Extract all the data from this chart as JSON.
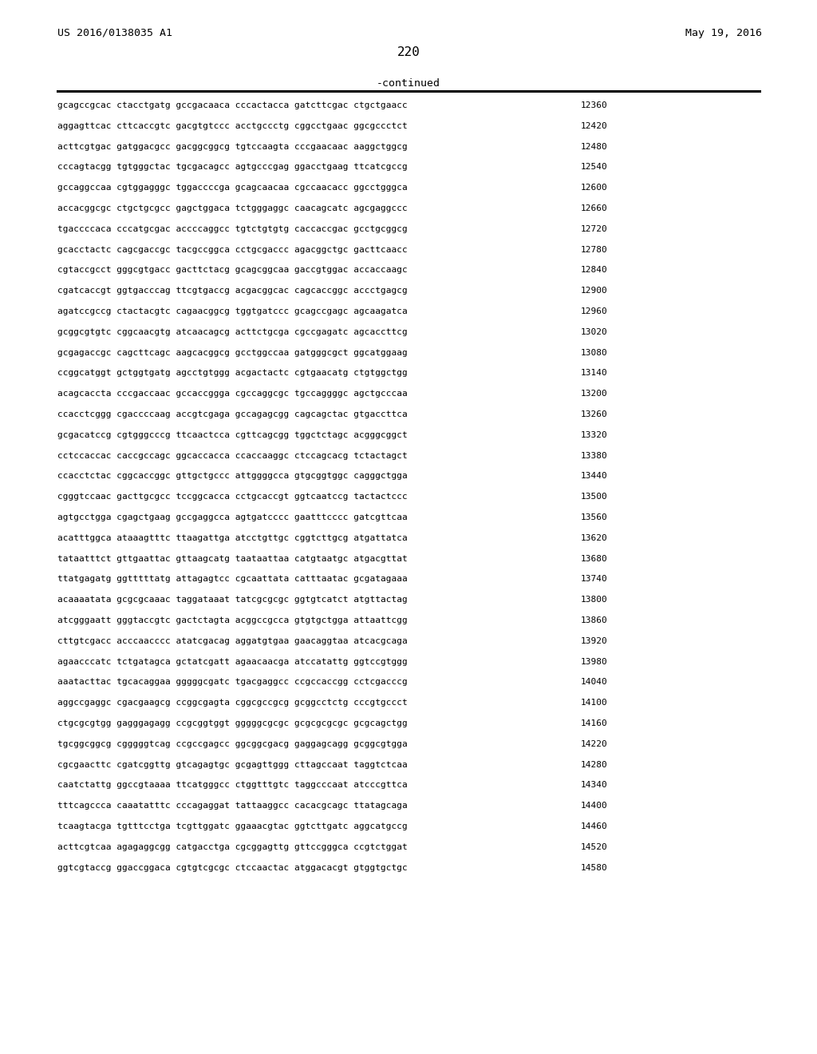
{
  "patent_left": "US 2016/0138035 A1",
  "patent_right": "May 19, 2016",
  "page_number": "220",
  "continued_text": "-continued",
  "background_color": "#ffffff",
  "text_color": "#000000",
  "font_size_header": 9.5,
  "font_size_sequence": 8.0,
  "font_size_page": 11.5,
  "sequences": [
    [
      "gcagccgcac ctacctgatg gccgacaaca cccactacca gatcttcgac ctgctgaacc",
      "12360"
    ],
    [
      "aggagttcac cttcaccgtc gacgtgtccc acctgccctg cggcctgaac ggcgccctct",
      "12420"
    ],
    [
      "acttcgtgac gatggacgcc gacggcggcg tgtccaagta cccgaacaac aaggctggcg",
      "12480"
    ],
    [
      "cccagtacgg tgtgggctac tgcgacagcc agtgcccgag ggacctgaag ttcatcgccg",
      "12540"
    ],
    [
      "gccaggccaa cgtggagggc tggaccccga gcagcaacaa cgccaacacc ggcctgggca",
      "12600"
    ],
    [
      "accacggcgc ctgctgcgcc gagctggaca tctgggaggc caacagcatc agcgaggccc",
      "12660"
    ],
    [
      "tgaccccaca cccatgcgac accccaggcc tgtctgtgtg caccaccgac gcctgcggcg",
      "12720"
    ],
    [
      "gcacctactc cagcgaccgc tacgccggca cctgcgaccc agacggctgc gacttcaacc",
      "12780"
    ],
    [
      "cgtaccgcct gggcgtgacc gacttctacg gcagcggcaa gaccgtggac accaccaagc",
      "12840"
    ],
    [
      "cgatcaccgt ggtgacccag ttcgtgaccg acgacggcac cagcaccggc accctgagcg",
      "12900"
    ],
    [
      "agatccgccg ctactacgtc cagaacggcg tggtgatccc gcagccgagc agcaagatca",
      "12960"
    ],
    [
      "gcggcgtgtc cggcaacgtg atcaacagcg acttctgcga cgccgagatc agcaccttcg",
      "13020"
    ],
    [
      "gcgagaccgc cagcttcagc aagcacggcg gcctggccaa gatgggcgct ggcatggaag",
      "13080"
    ],
    [
      "ccggcatggt gctggtgatg agcctgtggg acgactactc cgtgaacatg ctgtggctgg",
      "13140"
    ],
    [
      "acagcaccta cccgaccaac gccaccggga cgccaggcgc tgccaggggc agctgcccaa",
      "13200"
    ],
    [
      "ccacctcggg cgaccccaag accgtcgaga gccagagcgg cagcagctac gtgaccttca",
      "13260"
    ],
    [
      "gcgacatccg cgtgggcccg ttcaactcca cgttcagcgg tggctctagc acgggcggct",
      "13320"
    ],
    [
      "cctccaccac caccgccagc ggcaccacca ccaccaaggc ctccagcacg tctactagct",
      "13380"
    ],
    [
      "ccacctctac cggcaccggc gttgctgccc attggggcca gtgcggtggc cagggctgga",
      "13440"
    ],
    [
      "cgggtccaac gacttgcgcc tccggcacca cctgcaccgt ggtcaatccg tactactccc",
      "13500"
    ],
    [
      "agtgcctgga cgagctgaag gccgaggcca agtgatcccc gaatttcccc gatcgttcaa",
      "13560"
    ],
    [
      "acatttggca ataaagtttc ttaagattga atcctgttgc cggtcttgcg atgattatca",
      "13620"
    ],
    [
      "tataatttct gttgaattac gttaagcatg taataattaa catgtaatgc atgacgttat",
      "13680"
    ],
    [
      "ttatgagatg ggtttttatg attagagtcc cgcaattata catttaatac gcgatagaaa",
      "13740"
    ],
    [
      "acaaaatata gcgcgcaaac taggataaat tatcgcgcgc ggtgtcatct atgttactag",
      "13800"
    ],
    [
      "atcgggaatt gggtaccgtc gactctagta acggccgcca gtgtgctgga attaattcgg",
      "13860"
    ],
    [
      "cttgtcgacc acccaacccc atatcgacag aggatgtgaa gaacaggtaa atcacgcaga",
      "13920"
    ],
    [
      "agaacccatc tctgatagca gctatcgatt agaacaacga atccatattg ggtccgtggg",
      "13980"
    ],
    [
      "aaatacttac tgcacaggaa gggggcgatc tgacgaggcc ccgccaccgg cctcgacccg",
      "14040"
    ],
    [
      "aggccgaggc cgacgaagcg ccggcgagta cggcgccgcg gcggcctctg cccgtgccct",
      "14100"
    ],
    [
      "ctgcgcgtgg gagggagagg ccgcggtggt gggggcgcgc gcgcgcgcgc gcgcagctgg",
      "14160"
    ],
    [
      "tgcggcggcg cgggggtcag ccgccgagcc ggcggcgacg gaggagcagg gcggcgtgga",
      "14220"
    ],
    [
      "cgcgaacttc cgatcggttg gtcagagtgc gcgagttggg cttagccaat taggtctcaa",
      "14280"
    ],
    [
      "caatctattg ggccgtaaaa ttcatgggcc ctggtttgtc taggcccaat atcccgttca",
      "14340"
    ],
    [
      "tttcagccca caaatatttc cccagaggat tattaaggcc cacacgcagc ttatagcaga",
      "14400"
    ],
    [
      "tcaagtacga tgtttcctga tcgttggatc ggaaacgtac ggtcttgatc aggcatgccg",
      "14460"
    ],
    [
      "acttcgtcaa agagaggcgg catgacctga cgcggagttg gttccgggca ccgtctggat",
      "14520"
    ],
    [
      "ggtcgtaccg ggaccggaca cgtgtcgcgc ctccaactac atggacacgt gtggtgctgc",
      "14580"
    ]
  ]
}
